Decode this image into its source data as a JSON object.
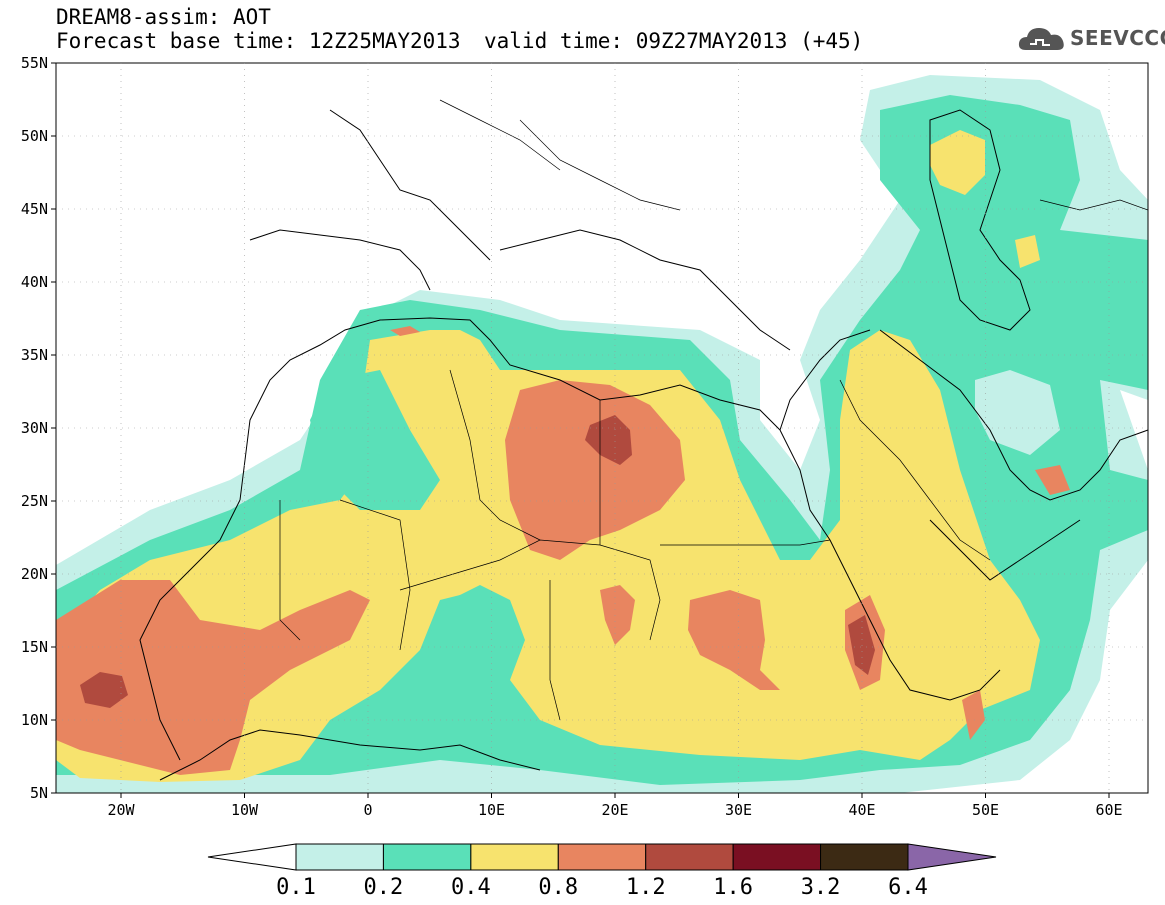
{
  "header": {
    "title_line1": "DREAM8-assim: AOT",
    "title_line2": "Forecast base time: 12Z25MAY2013",
    "valid_time": "valid time: 09Z27MAY2013 (+45)",
    "logo_text": "SEEVCCC"
  },
  "axes": {
    "lat_labels": [
      "55N",
      "50N",
      "45N",
      "40N",
      "35N",
      "30N",
      "25N",
      "20N",
      "15N",
      "10N",
      "5N"
    ],
    "lon_labels": [
      "20W",
      "10W",
      "0",
      "10E",
      "20E",
      "30E",
      "40E",
      "50E",
      "60E"
    ]
  },
  "colorbar": {
    "labels": [
      "0.1",
      "0.2",
      "0.4",
      "0.8",
      "1.2",
      "1.6",
      "3.2",
      "6.4"
    ],
    "colors": [
      "#ffffff",
      "#c4f0e8",
      "#5ae0b8",
      "#f7e36e",
      "#e88560",
      "#b04a3e",
      "#7a0f22",
      "#3c2a14",
      "#8a66a8"
    ]
  },
  "colors": {
    "level_0_1": "#c4f0e8",
    "level_0_2": "#5ae0b8",
    "level_0_4": "#f7e36e",
    "level_0_8": "#e88560",
    "level_1_2": "#b04a3e"
  }
}
